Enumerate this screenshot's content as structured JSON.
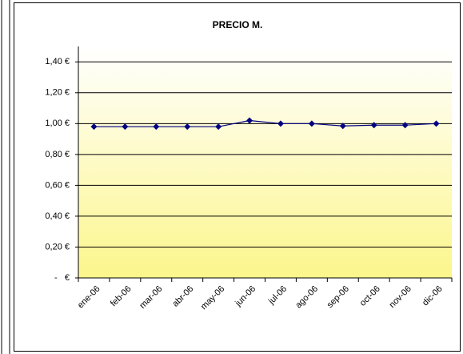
{
  "chart_data": {
    "type": "line",
    "title": "PRECIO M.",
    "categories": [
      "ene-06",
      "feb-06",
      "mar-06",
      "abr-06",
      "may-06",
      "jun-06",
      "jul-06",
      "ago-06",
      "sep-06",
      "oct-06",
      "nov-06",
      "dic-06"
    ],
    "series": [
      {
        "name": "PRECIO M.",
        "color": "#000080",
        "values": [
          0.98,
          0.98,
          0.98,
          0.98,
          0.98,
          1.02,
          1.0,
          1.0,
          0.985,
          0.99,
          0.99,
          1.0
        ]
      }
    ],
    "ylim": [
      0,
      1.5
    ],
    "yticks": [
      {
        "value": 0,
        "label": "-   €"
      },
      {
        "value": 0.2,
        "label": "0,20 €"
      },
      {
        "value": 0.4,
        "label": "0,40 €"
      },
      {
        "value": 0.6,
        "label": "0,60 €"
      },
      {
        "value": 0.8,
        "label": "0,80 €"
      },
      {
        "value": 1.0,
        "label": "1,00 €"
      },
      {
        "value": 1.2,
        "label": "1,20 €"
      },
      {
        "value": 1.4,
        "label": "1,40 €"
      }
    ],
    "grid": true
  }
}
